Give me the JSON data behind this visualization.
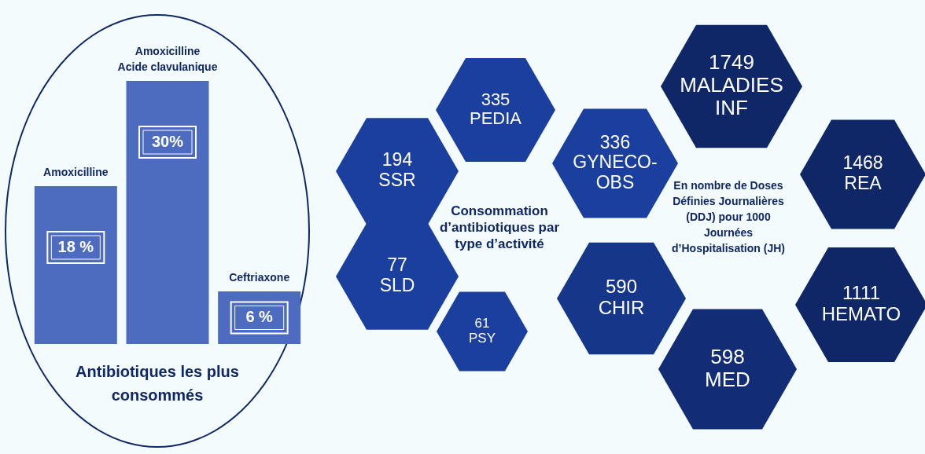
{
  "chart_data": [
    {
      "type": "bar",
      "title": "Antibiotiques les plus consommés",
      "categories": [
        "Amoxicilline",
        "Amoxicilline\nAcide clavulanique",
        "Ceftriaxone"
      ],
      "values": [
        18,
        30,
        6
      ],
      "value_labels": [
        "18 %",
        "30%",
        "6 %"
      ],
      "color": "#4d6cc0"
    },
    {
      "type": "other",
      "title": "Consommation d’antibiotiques par type d’activité",
      "subtitle": "En nombre de Doses Définies Journalières (DDJ) pour 1000 Journées d’Hospitalisation (JH)",
      "categories": [
        "PEDIA",
        "SSR",
        "SLD",
        "PSY",
        "GYNECO-OBS",
        "CHIR",
        "MED",
        "HEMATO",
        "REA",
        "MALADIES INF"
      ],
      "values": [
        335,
        194,
        77,
        61,
        336,
        590,
        598,
        1111,
        1468,
        1749
      ],
      "data_labels": true,
      "colors": [
        "#1b3f9e",
        "#1b3f9e",
        "#1b3f9e",
        "#1b3f9e",
        "#1b3f9e",
        "#163689",
        "#122d76",
        "#0f2766",
        "#0f2766",
        "#0f2766"
      ]
    }
  ]
}
